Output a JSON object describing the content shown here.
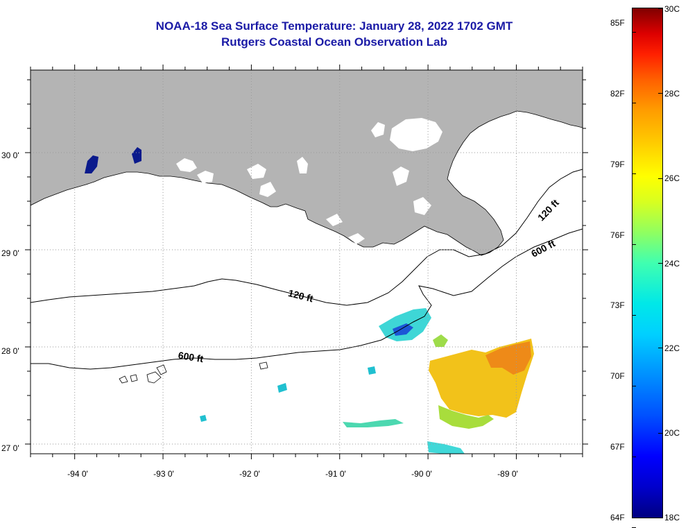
{
  "header": {
    "title": "NOAA-18 Sea Surface Temperature:  January 28, 2022 1702 GMT",
    "subtitle": "Rutgers Coastal Ocean Observation Lab"
  },
  "map": {
    "lon_range": [
      -94.5,
      -88.25
    ],
    "lat_range": [
      26.9,
      30.85
    ],
    "latitude_labels": [
      {
        "value": 30,
        "text": "30 0'"
      },
      {
        "value": 29,
        "text": "29 0'"
      },
      {
        "value": 28,
        "text": "28 0'"
      },
      {
        "value": 27,
        "text": "27 0'"
      }
    ],
    "longitude_labels": [
      {
        "value": -94,
        "text": "-94 0'"
      },
      {
        "value": -93,
        "text": "-93 0'"
      },
      {
        "value": -92,
        "text": "-92 0'"
      },
      {
        "value": -91,
        "text": "-91 0'"
      },
      {
        "value": -90,
        "text": "-90 0'"
      },
      {
        "value": -89,
        "text": "-89 0'"
      }
    ],
    "contour_labels": [
      {
        "text": "120 ft"
      },
      {
        "text": "600 ft"
      },
      {
        "text": "120 ft"
      },
      {
        "text": "600 ft"
      }
    ],
    "colors": {
      "land": "#b4b4b4",
      "grid": "#9a9a9a",
      "contour": "#000000"
    }
  },
  "colorbar": {
    "fahrenheit": [
      {
        "value": 85,
        "text": "85F"
      },
      {
        "value": 82,
        "text": "82F"
      },
      {
        "value": 79,
        "text": "79F"
      },
      {
        "value": 76,
        "text": "76F"
      },
      {
        "value": 73,
        "text": "73F"
      },
      {
        "value": 70,
        "text": "70F"
      },
      {
        "value": 67,
        "text": "67F"
      },
      {
        "value": 64,
        "text": "64F"
      }
    ],
    "celsius": [
      {
        "value": 30,
        "text": "30C"
      },
      {
        "value": 28,
        "text": "28C"
      },
      {
        "value": 26,
        "text": "26C"
      },
      {
        "value": 24,
        "text": "24C"
      },
      {
        "value": 22,
        "text": "22C"
      },
      {
        "value": 20,
        "text": "20C"
      },
      {
        "value": 18,
        "text": "18C"
      }
    ],
    "range_c": [
      18,
      30
    ]
  }
}
